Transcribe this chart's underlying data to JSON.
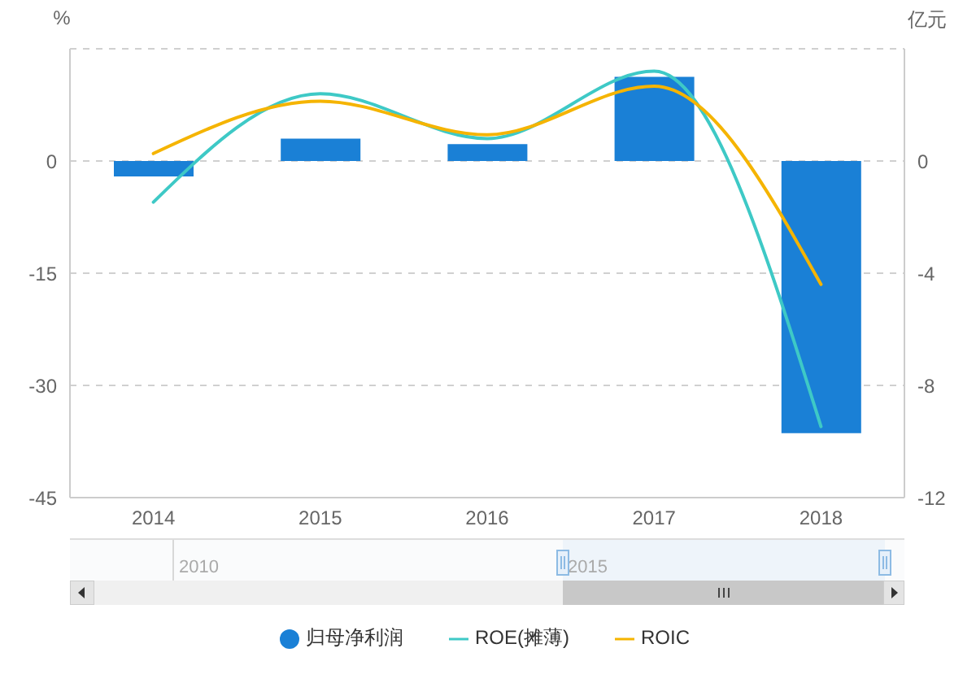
{
  "chart_data": {
    "type": "bar",
    "ylabel": "%",
    "y2label": "亿元",
    "categories": [
      "2014",
      "2015",
      "2016",
      "2017",
      "2018"
    ],
    "series": [
      {
        "name": "归母净利润",
        "axis": "y2",
        "color": "#1a80d6",
        "values": [
          -0.55,
          0.8,
          0.6,
          3.0,
          -9.7
        ]
      },
      {
        "name": "ROE(摊薄)",
        "type": "line",
        "color": "#3ec9c6",
        "values": [
          -5.5,
          9,
          3,
          12,
          -35.5
        ]
      },
      {
        "name": "ROIC",
        "type": "line",
        "color": "#f5b400",
        "values": [
          1,
          8,
          3.5,
          10,
          -16.5
        ]
      }
    ],
    "ylim": [
      -45,
      15
    ],
    "yticks": [
      -45,
      -30,
      -15,
      0,
      {
        "value": 15,
        "label": null
      }
    ],
    "y2lim": [
      -12,
      4
    ],
    "y2ticks": [
      -12,
      -8,
      -4,
      0
    ],
    "grid": "y",
    "legend": "bottom",
    "marker": "none",
    "annotations": [
      "2010",
      "2015"
    ]
  }
}
